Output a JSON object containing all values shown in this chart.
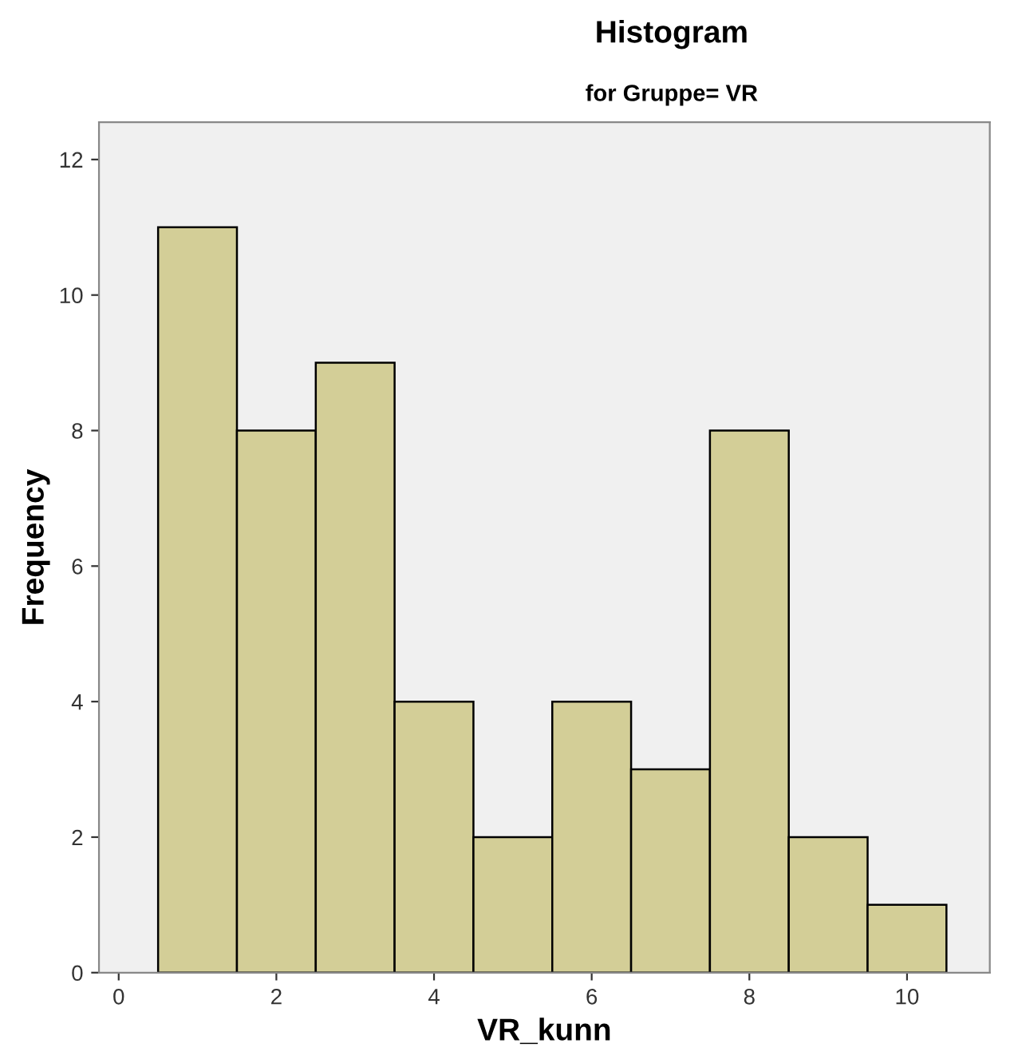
{
  "chart_data": {
    "type": "histogram",
    "title": "Histogram",
    "subtitle": "for Gruppe= VR",
    "xlabel": "VR_kunn",
    "ylabel": "Frequency",
    "bins": [
      0.5,
      1.5,
      2.5,
      3.5,
      4.5,
      5.5,
      6.5,
      7.5,
      8.5,
      9.5,
      10.5
    ],
    "values": [
      11,
      8,
      9,
      4,
      2,
      4,
      3,
      8,
      2,
      1
    ],
    "color": "#d3ce97",
    "xlim": [
      -0.25,
      11.05
    ],
    "xticks": [
      0,
      2,
      4,
      6,
      8,
      10
    ],
    "ylim": [
      0,
      12.55
    ],
    "yticks": [
      0,
      2,
      4,
      6,
      8,
      10,
      12
    ],
    "grid": false
  }
}
